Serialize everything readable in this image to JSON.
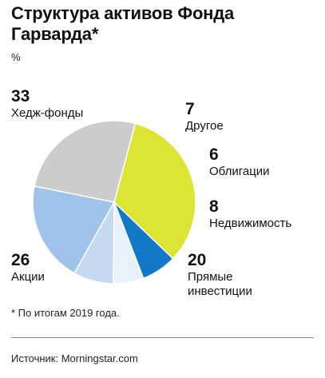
{
  "title": "Структура активов Фонда Гарварда*",
  "unit": "%",
  "footnote": "* По итогам 2019 года.",
  "source": "Источник: Morningstar.com",
  "chart_data": {
    "type": "pie",
    "title": "Структура активов Фонда Гарварда*",
    "unit": "%",
    "slices": [
      {
        "label": "Хедж-фонды",
        "value": 33,
        "color": "#dce534"
      },
      {
        "label": "Другое",
        "value": 7,
        "color": "#1278c8"
      },
      {
        "label": "Облигации",
        "value": 6,
        "color": "#e8f0fa"
      },
      {
        "label": "Недвижимость",
        "value": 8,
        "color": "#c5d9f0"
      },
      {
        "label": "Прямые инвестиции",
        "value": 20,
        "color": "#9fc3ea"
      },
      {
        "label": "Акции",
        "value": 26,
        "color": "#cccccc"
      }
    ]
  },
  "labels": [
    {
      "value": "33",
      "name": "Хедж-фонды"
    },
    {
      "value": "7",
      "name": "Другое"
    },
    {
      "value": "6",
      "name": "Облигации"
    },
    {
      "value": "8",
      "name": "Недвижимость"
    },
    {
      "value": "20",
      "name": "Прямые\nинвестиции"
    },
    {
      "value": "26",
      "name": "Акции"
    }
  ]
}
